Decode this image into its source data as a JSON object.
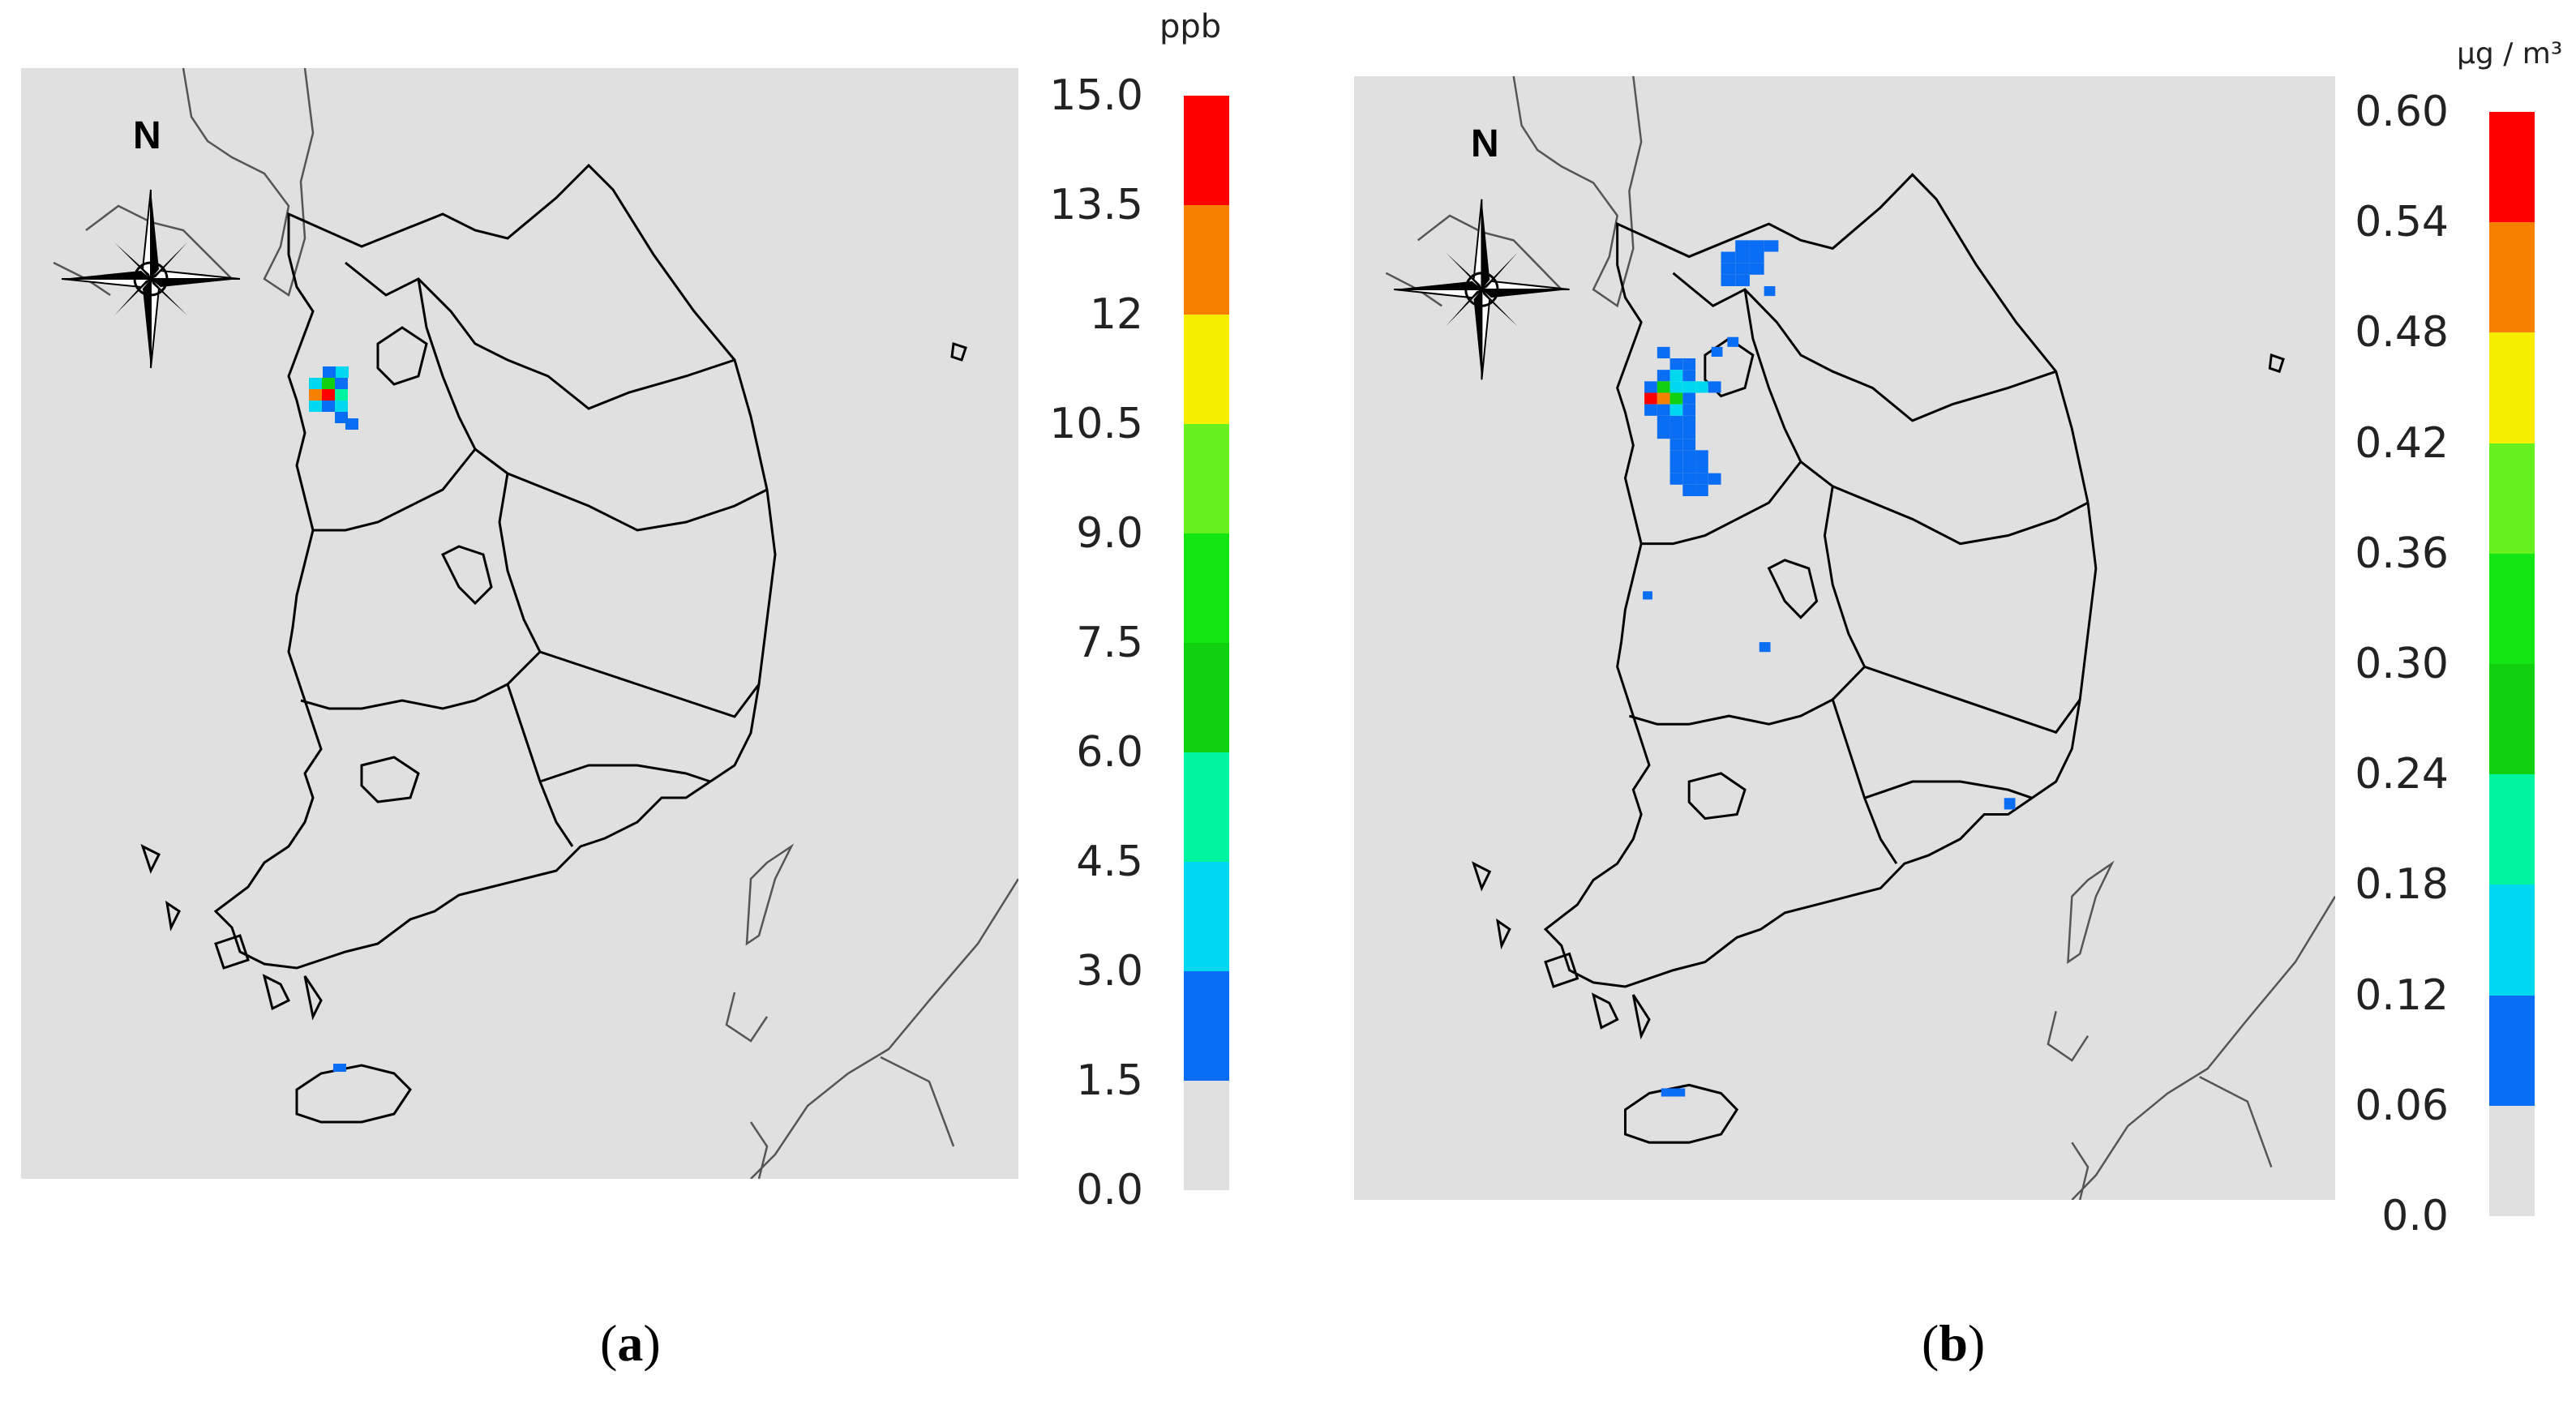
{
  "panels": [
    {
      "id": "a",
      "caption_letter": "a",
      "north_label": "N",
      "unit": "ppb",
      "legend": {
        "ticks": [
          "0.0",
          "1.5",
          "3.0",
          "4.5",
          "6.0",
          "7.5",
          "9.0",
          "10.5",
          "12",
          "13.5",
          "15.0"
        ],
        "colors": [
          "#e0e0e0",
          "#0a6ef5",
          "#00d8f0",
          "#00f5a0",
          "#10d010",
          "#14e614",
          "#66f020",
          "#f8ec00",
          "#f88000",
          "#ff0000"
        ]
      }
    },
    {
      "id": "b",
      "caption_letter": "b",
      "north_label": "N",
      "unit": "μg / m³",
      "legend": {
        "ticks": [
          "0.0",
          "0.06",
          "0.12",
          "0.18",
          "0.24",
          "0.30",
          "0.36",
          "0.42",
          "0.48",
          "0.54",
          "0.60"
        ],
        "colors": [
          "#e0e0e0",
          "#0a6ef5",
          "#00d8f0",
          "#00f5a0",
          "#10d010",
          "#14e614",
          "#66f020",
          "#f8ec00",
          "#f88000",
          "#ff0000"
        ]
      }
    }
  ],
  "icons": {
    "compass": "compass-rose-icon"
  }
}
